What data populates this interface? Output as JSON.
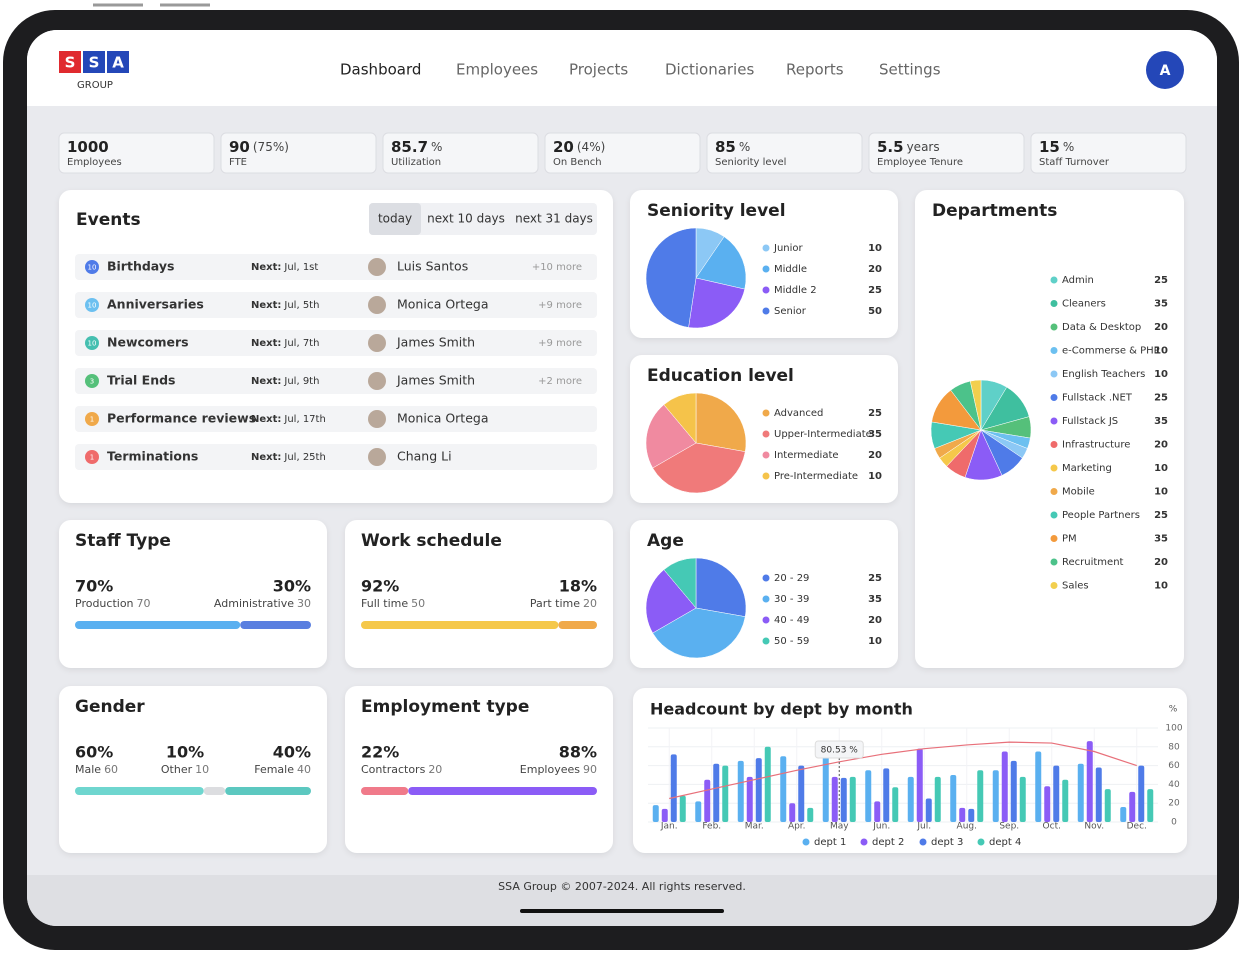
{
  "header": {
    "logo_letters": [
      "S",
      "S",
      "A"
    ],
    "logo_sub": "GROUP",
    "nav": [
      "Dashboard",
      "Employees",
      "Projects",
      "Dictionaries",
      "Reports",
      "Settings"
    ],
    "avatar": "A"
  },
  "kpis": [
    {
      "value": 1000,
      "label": "Employees"
    },
    {
      "value": 90,
      "extra": "(75%)",
      "label": "FTE"
    },
    {
      "value": 85.7,
      "extra": "%",
      "label": "Utilization"
    },
    {
      "value": 20,
      "extra": "(4%)",
      "label": "On Bench"
    },
    {
      "value": 85,
      "extra": "%",
      "label": "Seniority level"
    },
    {
      "value": 5.5,
      "extra": "years",
      "label": "Employee Tenure"
    },
    {
      "value": 15,
      "extra": "%",
      "label": "Staff Turnover"
    }
  ],
  "events": {
    "title": "Events",
    "tabs": [
      "today",
      "next 10 days",
      "next 31 days"
    ],
    "next_prefix": "Next:",
    "rows": [
      {
        "count": 10,
        "color": "#4f7be8",
        "name": "Birthdays",
        "date": "Jul, 1st",
        "person": "Luis Santos",
        "more": "+10 more"
      },
      {
        "count": 10,
        "color": "#6cc0f0",
        "name": "Anniversaries",
        "date": "Jul, 5th",
        "person": "Monica Ortega",
        "more": "+9 more"
      },
      {
        "count": 10,
        "color": "#45bfb0",
        "name": "Newcomers",
        "date": "Jul, 7th",
        "person": "James Smith",
        "more": "+9 more"
      },
      {
        "count": 3,
        "color": "#55c07a",
        "name": "Trial Ends",
        "date": "Jul, 9th",
        "person": "James Smith",
        "more": "+2 more"
      },
      {
        "count": 1,
        "color": "#f0a94a",
        "name": "Performance reviews",
        "date": "Jul, 17th",
        "person": "Monica Ortega"
      },
      {
        "count": 1,
        "color": "#ef6b6b",
        "name": "Terminations",
        "date": "Jul, 25th",
        "person": "Chang Li"
      }
    ]
  },
  "chart_data": [
    {
      "type": "pie",
      "title": "Seniority level",
      "categories": [
        "Junior",
        "Middle",
        "Middle 2",
        "Senior"
      ],
      "values": [
        10,
        20,
        25,
        50
      ],
      "colors": [
        "#8cc8f5",
        "#5ab0f0",
        "#8b5cf6",
        "#4f7be8"
      ]
    },
    {
      "type": "pie",
      "title": "Education level",
      "categories": [
        "Advanced",
        "Upper-Intermediate",
        "Intermediate",
        "Pre-Intermediate"
      ],
      "values": [
        25,
        35,
        20,
        10
      ],
      "colors": [
        "#f0a94a",
        "#f07a7a",
        "#f08aa0",
        "#f5c34a"
      ]
    },
    {
      "type": "pie",
      "title": "Age",
      "categories": [
        "20 - 29",
        "30 - 39",
        "40 - 49",
        "50 - 59"
      ],
      "values": [
        25,
        35,
        20,
        10
      ],
      "colors": [
        "#4f7be8",
        "#5ab0f0",
        "#8b5cf6",
        "#45c9b5"
      ]
    },
    {
      "type": "pie",
      "title": "Departments",
      "categories": [
        "Admin",
        "Cleaners",
        "Data & Desktop",
        "e-Commerse & PHP",
        "English Teachers",
        "Fullstack .NET",
        "Fullstack JS",
        "Infrastructure",
        "Marketing",
        "Mobile",
        "People Partners",
        "PM",
        "Recruitment",
        "Sales"
      ],
      "values": [
        25,
        35,
        20,
        10,
        10,
        25,
        35,
        20,
        10,
        10,
        25,
        35,
        20,
        10
      ],
      "colors": [
        "#5fd0c8",
        "#3fbf9f",
        "#55c07a",
        "#6cc0f0",
        "#8cc8f5",
        "#4f7be8",
        "#8b5cf6",
        "#ef6b6b",
        "#f5c84a",
        "#f0a94a",
        "#45c9b5",
        "#f39a3c",
        "#4cc28a",
        "#f2cf4e"
      ]
    },
    {
      "type": "bar",
      "title": "Headcount by dept by month",
      "unit": "%",
      "categories": [
        "Jan.",
        "Feb.",
        "Mar.",
        "Apr.",
        "May",
        "Jun.",
        "Jul.",
        "Aug.",
        "Sep.",
        "Oct.",
        "Nov.",
        "Dec."
      ],
      "series": [
        {
          "name": "dept 1",
          "color": "#5ab0f0",
          "values": [
            18,
            22,
            65,
            70,
            80,
            55,
            48,
            50,
            55,
            75,
            62,
            16
          ]
        },
        {
          "name": "dept 2",
          "color": "#8b5cf6",
          "values": [
            14,
            45,
            48,
            20,
            48,
            22,
            78,
            15,
            75,
            38,
            86,
            32
          ]
        },
        {
          "name": "dept 3",
          "color": "#4f7be8",
          "values": [
            72,
            62,
            68,
            60,
            47,
            57,
            25,
            14,
            65,
            60,
            58,
            60
          ]
        },
        {
          "name": "dept 4",
          "color": "#45c9b5",
          "values": [
            28,
            60,
            80,
            15,
            48,
            37,
            48,
            55,
            48,
            45,
            35,
            35
          ]
        }
      ],
      "trend": {
        "color": "#e8707a",
        "values": [
          25,
          35,
          45,
          55,
          64,
          72,
          78,
          82,
          85,
          84,
          75,
          60
        ]
      },
      "ylim": [
        0,
        100
      ],
      "yticks": [
        0,
        20,
        40,
        60,
        80,
        100
      ],
      "tooltip": {
        "value": 80.53,
        "label": "80.53 %"
      }
    }
  ],
  "progress": [
    {
      "title": "Staff Type",
      "segments": [
        {
          "percent": 70,
          "percent_label": "70%",
          "name": "Production",
          "count": 70,
          "color": "#5ab0f0"
        },
        {
          "percent": 30,
          "percent_label": "30%",
          "name": "Administrative",
          "count": 30,
          "color": "#5a7fe0"
        }
      ]
    },
    {
      "title": "Work schedule",
      "segments": [
        {
          "percent": 92,
          "percent_label": "92%",
          "name": "Full time",
          "count": 50,
          "color": "#f5c84a"
        },
        {
          "percent": 18,
          "percent_label": "18%",
          "name": "Part time",
          "count": 20,
          "color": "#f0a94a"
        }
      ]
    },
    {
      "title": "Gender",
      "segments": [
        {
          "percent": 60,
          "percent_label": "60%",
          "name": "Male",
          "count": 60,
          "color": "#6fd6cf"
        },
        {
          "percent": 10,
          "percent_label": "10%",
          "name": "Other",
          "count": 10,
          "color": "#dcdde0"
        },
        {
          "percent": 40,
          "percent_label": "40%",
          "name": "Female",
          "count": 40,
          "color": "#5cc8c0"
        }
      ]
    },
    {
      "title": "Employment type",
      "segments": [
        {
          "percent": 22,
          "percent_label": "22%",
          "name": "Contractors",
          "count": 20,
          "color": "#f07a8a"
        },
        {
          "percent": 88,
          "percent_label": "88%",
          "name": "Employees",
          "count": 90,
          "color": "#8b5cf6"
        }
      ]
    }
  ],
  "footer": "SSA Group © 2007-2024. All rights reserved."
}
